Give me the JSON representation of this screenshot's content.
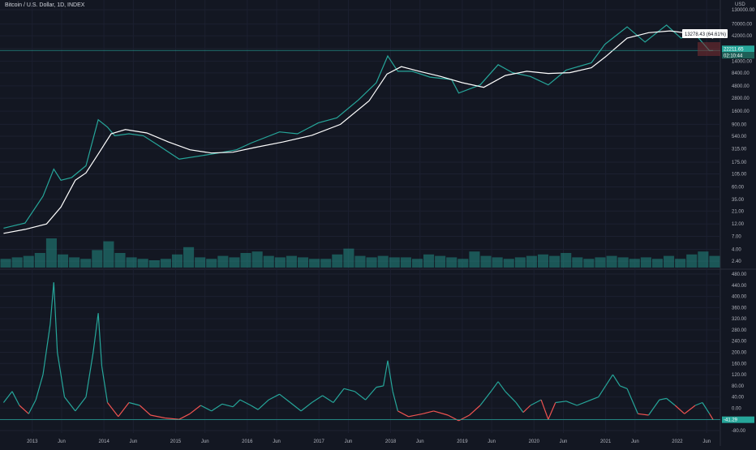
{
  "header": {
    "symbol_line": "Bitcoin / U.S. Dollar, 1D, INDEX"
  },
  "price_unit": "USD",
  "tooltip": "13278.43 (64.61%) 132",
  "price_tag_1": "22211.65",
  "price_tag_2": "02:10:44",
  "osc_tag": "-41.29",
  "colors": {
    "background": "#131722",
    "price": "#26a69a",
    "ma": "#ffffff",
    "volume": "#26a69a",
    "osc_up": "#26a69a",
    "osc_down": "#ef5350",
    "hline": "#26a69a",
    "text": "#b2b5be",
    "range_box": "#7b2d32"
  },
  "chart_data": [
    {
      "type": "line",
      "scale": "log",
      "price_axis_ticks": [
        "130000.00",
        "70000.00",
        "42000.00",
        "24000.00",
        "14000.00",
        "8400.00",
        "4800.00",
        "2800.00",
        "1600.00",
        "900.00",
        "540.00",
        "315.00",
        "175.00",
        "105.00",
        "60.00",
        "35.00",
        "21.00",
        "12.00",
        "7.00",
        "4.00",
        "2.40"
      ],
      "time_axis_ticks": [
        "2013",
        "Jun",
        "2014",
        "Jun",
        "2015",
        "Jun",
        "2016",
        "Jun",
        "2017",
        "Jun",
        "2018",
        "Jun",
        "2019",
        "Jun",
        "2020",
        "Jun",
        "2021",
        "Jun",
        "2022",
        "Jun"
      ],
      "series": [
        {
          "points": [
            [
              2012.6,
              10
            ],
            [
              2012.9,
              12.5
            ],
            [
              2013.15,
              40
            ],
            [
              2013.3,
              130
            ],
            [
              2013.4,
              80
            ],
            [
              2013.55,
              90
            ],
            [
              2013.75,
              150
            ],
            [
              2013.92,
              1100
            ],
            [
              2014.05,
              800
            ],
            [
              2014.15,
              550
            ],
            [
              2014.35,
              600
            ],
            [
              2014.55,
              550
            ],
            [
              2014.75,
              370
            ],
            [
              2015.05,
              200
            ],
            [
              2015.35,
              230
            ],
            [
              2015.6,
              260
            ],
            [
              2015.85,
              300
            ],
            [
              2016.05,
              400
            ],
            [
              2016.45,
              650
            ],
            [
              2016.7,
              600
            ],
            [
              2016.99,
              960
            ],
            [
              2017.25,
              1200
            ],
            [
              2017.55,
              2600
            ],
            [
              2017.8,
              5500
            ],
            [
              2017.96,
              17500
            ],
            [
              2018.1,
              9000
            ],
            [
              2018.3,
              9000
            ],
            [
              2018.55,
              7000
            ],
            [
              2018.85,
              6300
            ],
            [
              2018.95,
              3500
            ],
            [
              2019.25,
              5000
            ],
            [
              2019.5,
              12000
            ],
            [
              2019.7,
              8500
            ],
            [
              2019.95,
              7200
            ],
            [
              2020.2,
              5000
            ],
            [
              2020.45,
              9500
            ],
            [
              2020.8,
              13000
            ],
            [
              2020.99,
              29000
            ],
            [
              2021.3,
              62000
            ],
            [
              2021.55,
              32000
            ],
            [
              2021.85,
              67000
            ],
            [
              2022.05,
              38000
            ],
            [
              2022.25,
              45000
            ],
            [
              2022.45,
              22000
            ],
            [
              2022.5,
              22211.65
            ]
          ]
        },
        {
          "points": [
            [
              2012.6,
              8
            ],
            [
              2012.9,
              9.5
            ],
            [
              2013.2,
              12
            ],
            [
              2013.4,
              25
            ],
            [
              2013.6,
              80
            ],
            [
              2013.75,
              110
            ],
            [
              2013.92,
              250
            ],
            [
              2014.1,
              600
            ],
            [
              2014.3,
              720
            ],
            [
              2014.6,
              620
            ],
            [
              2014.9,
              420
            ],
            [
              2015.2,
              300
            ],
            [
              2015.5,
              260
            ],
            [
              2015.8,
              270
            ],
            [
              2016.1,
              330
            ],
            [
              2016.5,
              420
            ],
            [
              2016.9,
              560
            ],
            [
              2017.3,
              900
            ],
            [
              2017.7,
              2500
            ],
            [
              2017.95,
              8000
            ],
            [
              2018.15,
              11000
            ],
            [
              2018.4,
              9000
            ],
            [
              2018.7,
              7200
            ],
            [
              2019.0,
              5500
            ],
            [
              2019.3,
              4500
            ],
            [
              2019.6,
              7500
            ],
            [
              2019.9,
              9000
            ],
            [
              2020.2,
              8200
            ],
            [
              2020.5,
              8500
            ],
            [
              2020.8,
              10500
            ],
            [
              2021.0,
              17000
            ],
            [
              2021.3,
              38000
            ],
            [
              2021.6,
              48000
            ],
            [
              2021.9,
              52000
            ],
            [
              2022.2,
              46000
            ],
            [
              2022.45,
              40000
            ],
            [
              2022.5,
              38000
            ]
          ]
        }
      ]
    },
    {
      "type": "bar",
      "series_note": "volume",
      "values_relative": [
        0.3,
        0.35,
        0.4,
        0.5,
        1.0,
        0.45,
        0.35,
        0.3,
        0.6,
        0.9,
        0.5,
        0.35,
        0.3,
        0.25,
        0.3,
        0.45,
        0.7,
        0.35,
        0.3,
        0.4,
        0.35,
        0.5,
        0.55,
        0.4,
        0.35,
        0.4,
        0.35,
        0.3,
        0.3,
        0.45,
        0.65,
        0.4,
        0.35,
        0.4,
        0.35,
        0.35,
        0.3,
        0.45,
        0.4,
        0.35,
        0.3,
        0.55,
        0.4,
        0.35,
        0.3,
        0.35,
        0.4,
        0.45,
        0.4,
        0.5,
        0.35,
        0.3,
        0.35,
        0.4,
        0.35,
        0.3,
        0.35,
        0.3,
        0.4,
        0.3,
        0.45,
        0.55,
        0.4
      ]
    },
    {
      "type": "line",
      "axis_ticks": [
        "480.00",
        "440.00",
        "400.00",
        "360.00",
        "320.00",
        "280.00",
        "240.00",
        "200.00",
        "160.00",
        "120.00",
        "80.00",
        "40.00",
        "0.00",
        "-40.00",
        "-80.00"
      ],
      "hline": -41.29,
      "series": [
        {
          "points": [
            [
              2012.6,
              20
            ],
            [
              2012.72,
              60
            ],
            [
              2012.82,
              10
            ],
            [
              2012.95,
              -20
            ],
            [
              2013.05,
              30
            ],
            [
              2013.15,
              120
            ],
            [
              2013.25,
              300
            ],
            [
              2013.3,
              450
            ],
            [
              2013.35,
              200
            ],
            [
              2013.45,
              40
            ],
            [
              2013.6,
              -10
            ],
            [
              2013.75,
              40
            ],
            [
              2013.85,
              200
            ],
            [
              2013.92,
              340
            ],
            [
              2013.97,
              150
            ],
            [
              2014.05,
              20
            ],
            [
              2014.2,
              -30
            ],
            [
              2014.35,
              20
            ],
            [
              2014.5,
              10
            ],
            [
              2014.65,
              -25
            ],
            [
              2014.85,
              -35
            ],
            [
              2015.05,
              -40
            ],
            [
              2015.2,
              -20
            ],
            [
              2015.35,
              10
            ],
            [
              2015.5,
              -10
            ],
            [
              2015.65,
              15
            ],
            [
              2015.8,
              5
            ],
            [
              2015.9,
              30
            ],
            [
              2016.05,
              10
            ],
            [
              2016.15,
              -5
            ],
            [
              2016.3,
              30
            ],
            [
              2016.45,
              50
            ],
            [
              2016.6,
              20
            ],
            [
              2016.75,
              -10
            ],
            [
              2016.9,
              20
            ],
            [
              2017.05,
              45
            ],
            [
              2017.2,
              20
            ],
            [
              2017.35,
              70
            ],
            [
              2017.5,
              60
            ],
            [
              2017.65,
              30
            ],
            [
              2017.8,
              75
            ],
            [
              2017.9,
              80
            ],
            [
              2017.96,
              170
            ],
            [
              2018.03,
              60
            ],
            [
              2018.1,
              -10
            ],
            [
              2018.25,
              -30
            ],
            [
              2018.45,
              -20
            ],
            [
              2018.6,
              -10
            ],
            [
              2018.8,
              -25
            ],
            [
              2018.95,
              -45
            ],
            [
              2019.1,
              -25
            ],
            [
              2019.25,
              10
            ],
            [
              2019.4,
              60
            ],
            [
              2019.5,
              95
            ],
            [
              2019.6,
              60
            ],
            [
              2019.75,
              20
            ],
            [
              2019.85,
              -15
            ],
            [
              2019.95,
              10
            ],
            [
              2020.1,
              30
            ],
            [
              2020.2,
              -40
            ],
            [
              2020.3,
              20
            ],
            [
              2020.45,
              25
            ],
            [
              2020.6,
              10
            ],
            [
              2020.75,
              25
            ],
            [
              2020.9,
              40
            ],
            [
              2021.0,
              80
            ],
            [
              2021.1,
              120
            ],
            [
              2021.2,
              80
            ],
            [
              2021.3,
              70
            ],
            [
              2021.45,
              -20
            ],
            [
              2021.6,
              -25
            ],
            [
              2021.75,
              30
            ],
            [
              2021.85,
              35
            ],
            [
              2021.97,
              10
            ],
            [
              2022.1,
              -20
            ],
            [
              2022.25,
              10
            ],
            [
              2022.35,
              20
            ],
            [
              2022.45,
              -20
            ],
            [
              2022.5,
              -41.29
            ]
          ]
        }
      ]
    }
  ]
}
